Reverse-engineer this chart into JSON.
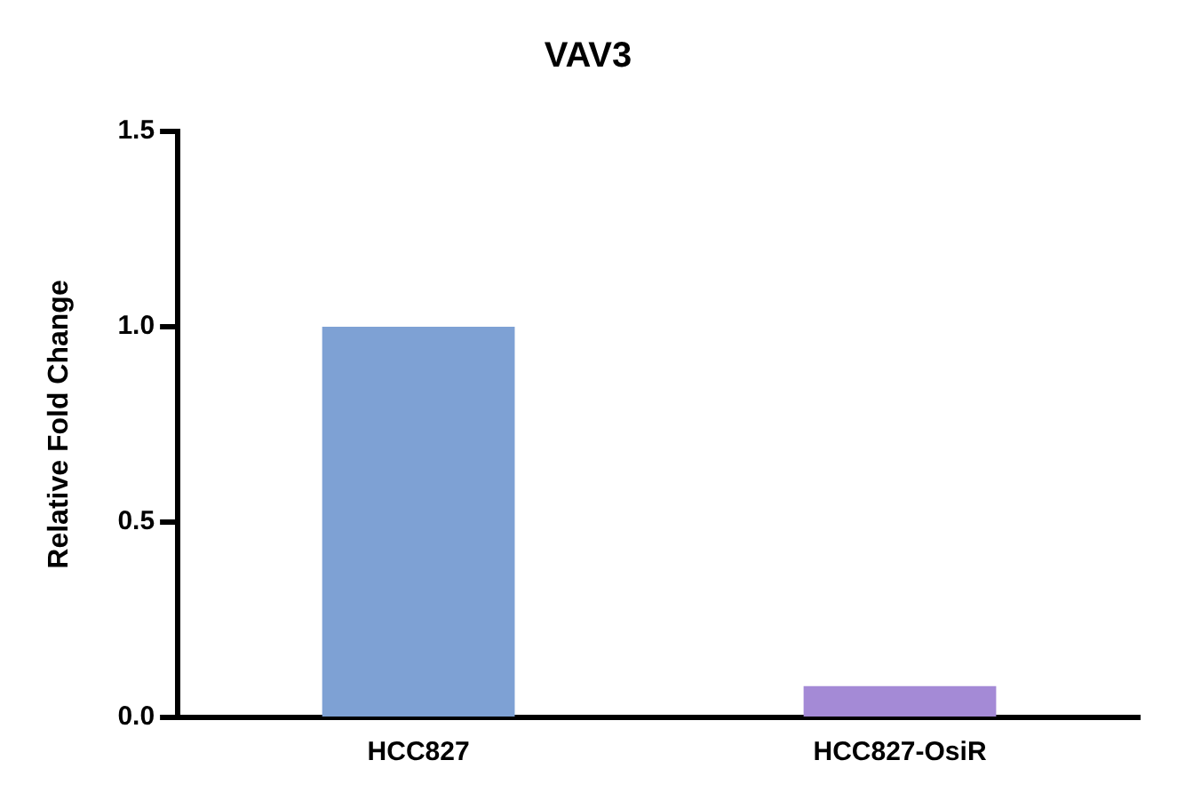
{
  "chart_data": {
    "type": "bar",
    "title": "VAV3",
    "ylabel": "Relative Fold Change",
    "categories": [
      "HCC827",
      "HCC827-OsiR"
    ],
    "values": [
      1.0,
      0.08
    ],
    "colors": [
      "#7ea1d4",
      "#a48ad6"
    ],
    "ylim": [
      0,
      1.5
    ],
    "yticks": [
      {
        "value": 0,
        "label": "0.0"
      },
      0.5,
      {
        "value": 1,
        "label": "1.0"
      },
      1.5
    ],
    "grid": false,
    "legend": false
  }
}
